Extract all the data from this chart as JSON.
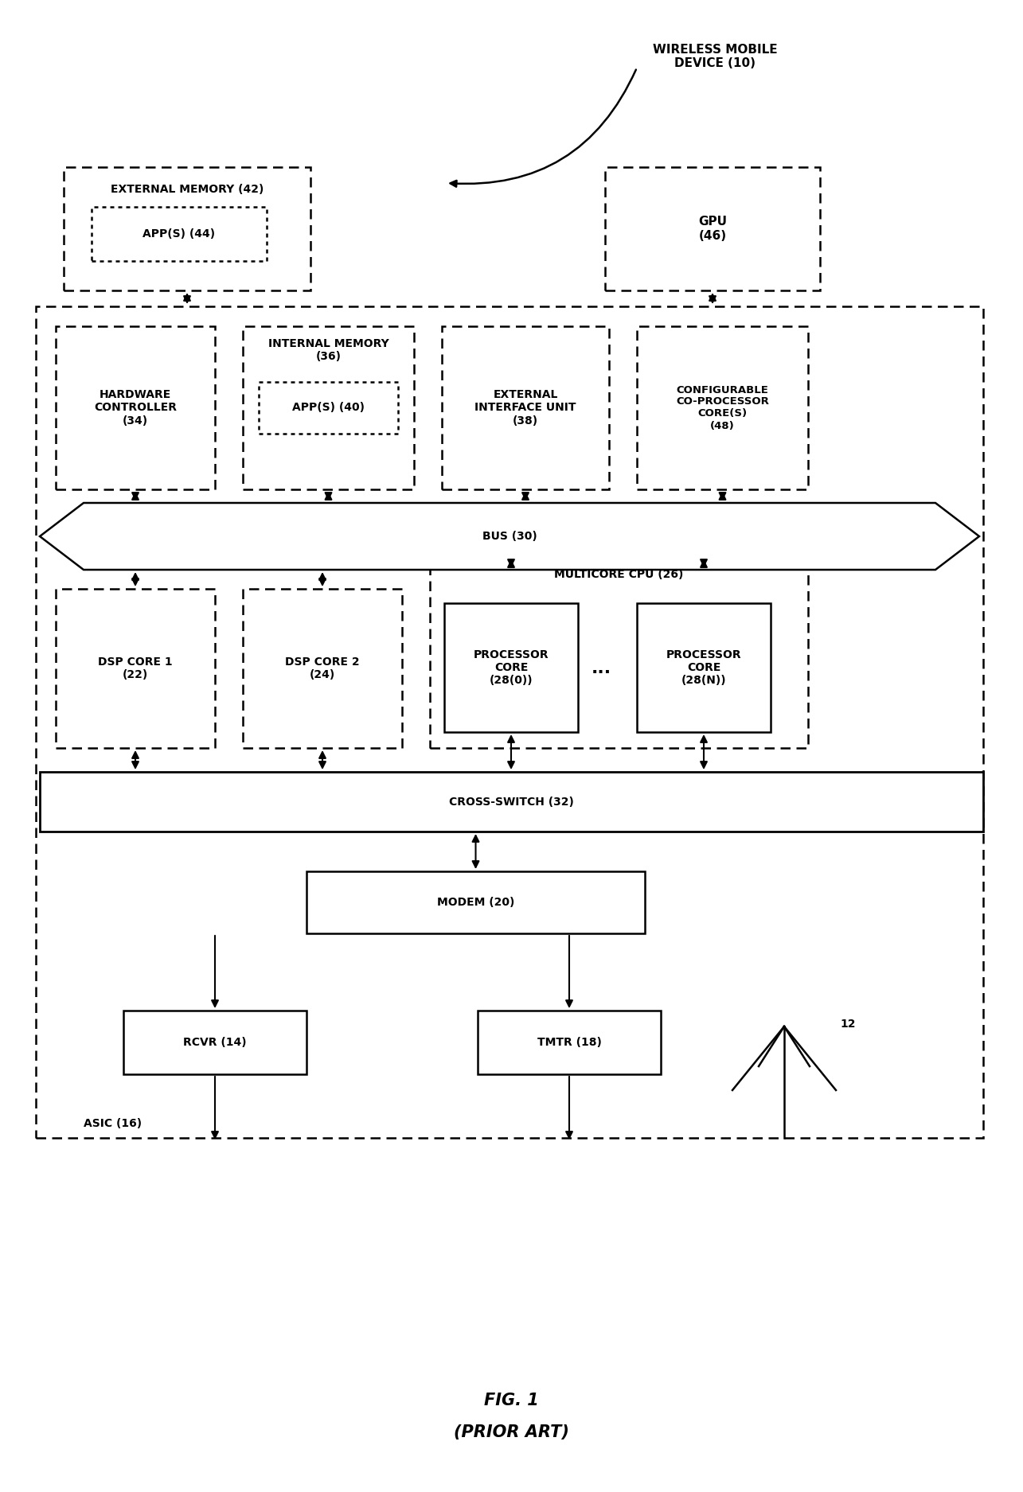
{
  "fig_width": 12.85,
  "fig_height": 18.75,
  "bg_color": "#ffffff",
  "title_line1": "FIG. 1",
  "title_line2": "(PRIOR ART)",
  "wireless_label": "WIRELESS MOBILE\nDEVICE (10)",
  "asic_label": "ASIC (16)",
  "bus_label": "BUS (30)",
  "ext_mem_label1": "EXTERNAL MEMORY (42)",
  "apps44_label": "APP(S) (44)",
  "gpu_label": "GPU\n(46)",
  "hw_ctrl_label": "HARDWARE\nCONTROLLER\n(34)",
  "int_mem_label1": "INTERNAL MEMORY",
  "int_mem_label2": "(36)",
  "apps40_label": "APP(S) (40)",
  "ext_iface_label": "EXTERNAL\nINTERFACE UNIT\n(38)",
  "config_core_label": "CONFIGURABLE\nCO-PROCESSOR\nCORE(S)\n(48)",
  "multicore_label": "MULTICORE CPU (26)",
  "dsp1_label": "DSP CORE 1\n(22)",
  "dsp2_label": "DSP CORE 2\n(24)",
  "proc0_label": "PROCESSOR\nCORE\n(28(0))",
  "procN_label": "PROCESSOR\nCORE\n(28(N))",
  "cross_switch_label": "CROSS-SWITCH (32)",
  "modem_label": "MODEM (20)",
  "rcvr_label": "RCVR (14)",
  "tmtr_label": "TMTR (18)",
  "antenna_label": "12"
}
